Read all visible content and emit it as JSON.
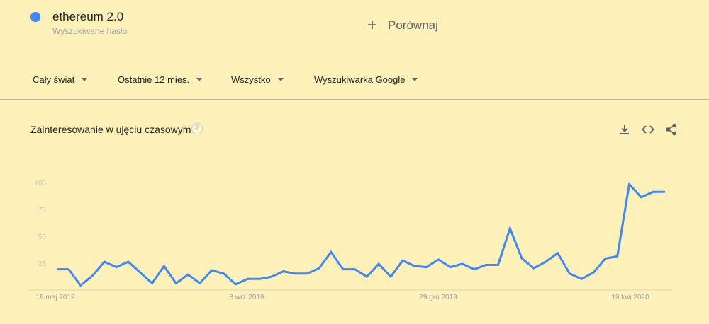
{
  "search_term": {
    "name": "ethereum 2.0",
    "type_label": "Wyszukiwane hasło",
    "color": "#4285f4"
  },
  "compare": {
    "label": "Porównaj",
    "icon": "plus-icon"
  },
  "filters": [
    {
      "label": "Cały świat"
    },
    {
      "label": "Ostatnie 12 mies."
    },
    {
      "label": "Wszystko"
    },
    {
      "label": "Wyszukiwarka Google"
    }
  ],
  "panel": {
    "title": "Zainteresowanie w ujęciu czasowym",
    "help": "?",
    "actions": [
      "download-icon",
      "embed-icon",
      "share-icon"
    ]
  },
  "chart_data": {
    "type": "line",
    "title": "",
    "xlabel": "",
    "ylabel": "",
    "ylim": [
      0,
      100
    ],
    "y_ticks": [
      25,
      50,
      75,
      100
    ],
    "x_ticks": [
      "19 maj 2019",
      "8 wrz 2019",
      "29 gru 2019",
      "19 kwi 2020"
    ],
    "series": [
      {
        "color": "#4285f4",
        "values": [
          20,
          20,
          5,
          14,
          27,
          22,
          27,
          17,
          7,
          23,
          7,
          15,
          7,
          19,
          16,
          6,
          11,
          11,
          13,
          18,
          16,
          16,
          21,
          36,
          20,
          20,
          13,
          25,
          13,
          28,
          23,
          22,
          29,
          22,
          25,
          20,
          24,
          24,
          58,
          30,
          21,
          27,
          35,
          16,
          11,
          17,
          30,
          32,
          99,
          87,
          92,
          92
        ]
      }
    ]
  }
}
